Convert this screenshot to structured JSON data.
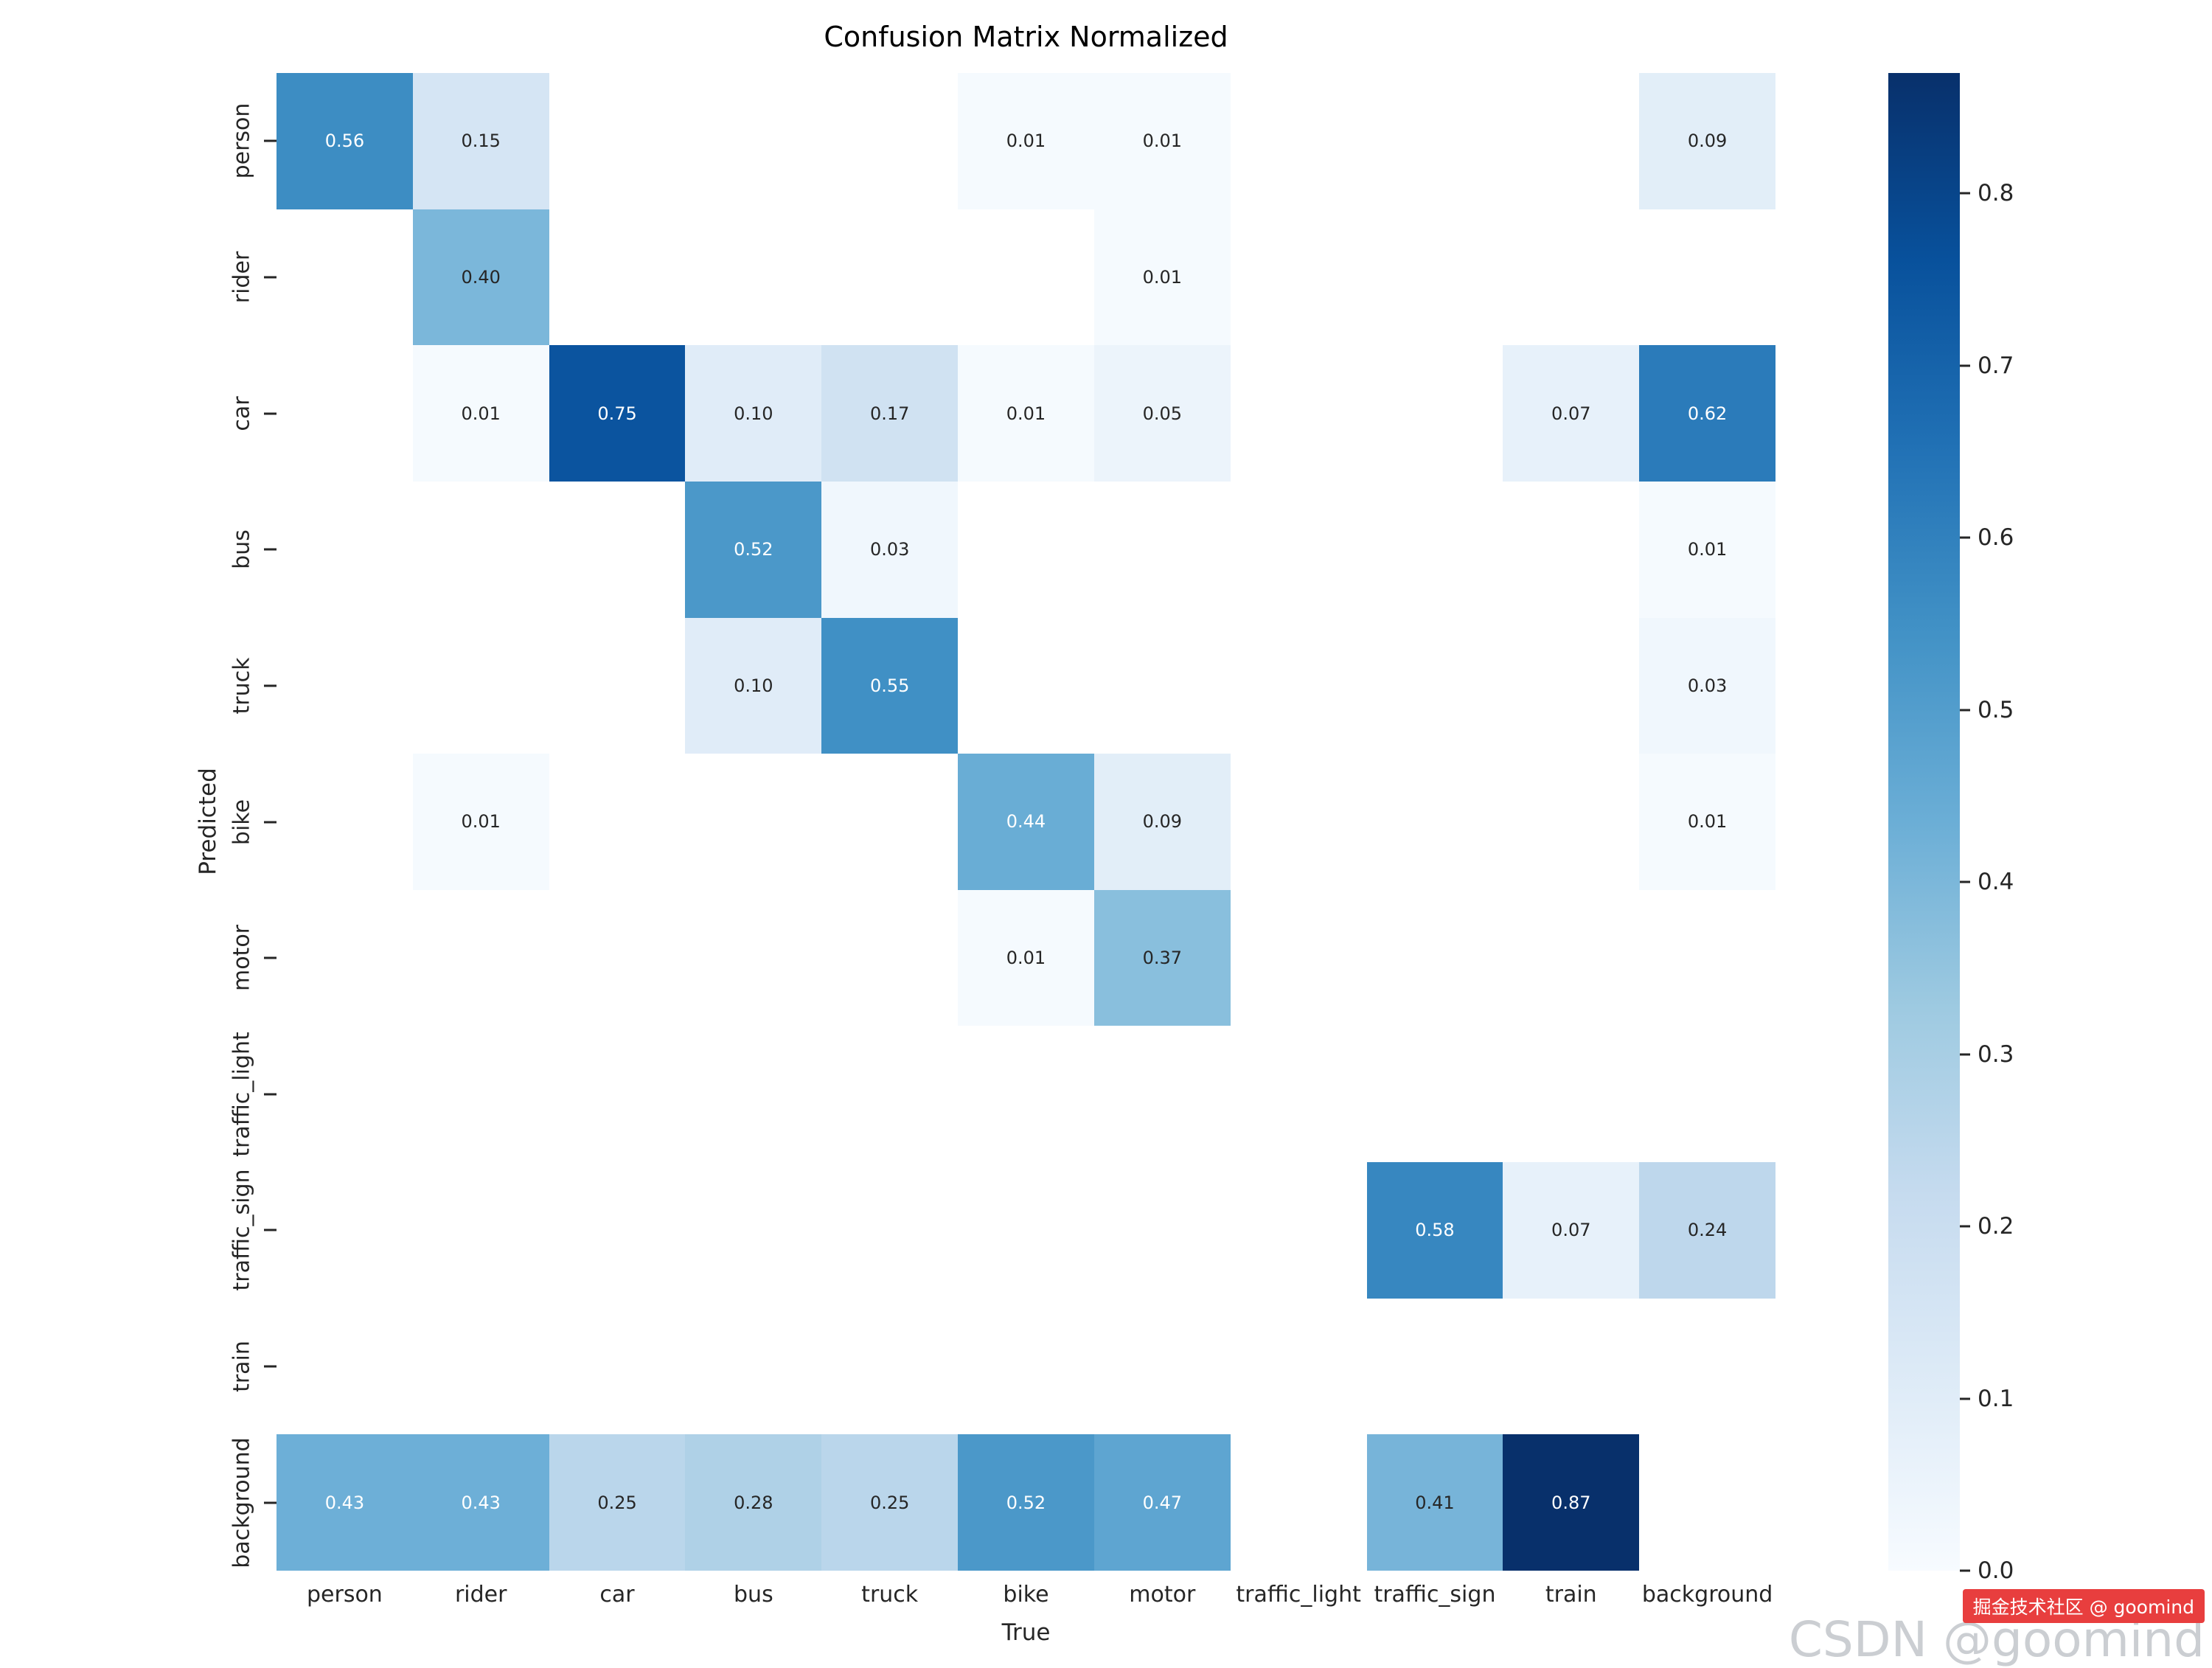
{
  "title": "Confusion Matrix Normalized",
  "watermark": {
    "badge": "掘金技术社区 @ goomind",
    "text": "CSDN @goomind"
  },
  "colors": {
    "colormap_dark": "#08306b",
    "colormap_light": "#f7fbff",
    "annotation_dark_text": "#262626",
    "annotation_light_text": "#ffffff",
    "watermark_red": "#e83e3e",
    "watermark_gray": "#a8aeb4"
  },
  "chart_data": {
    "type": "heatmap",
    "title": "Confusion Matrix Normalized",
    "xlabel": "True",
    "ylabel": "Predicted",
    "colormap": "Blues",
    "grid": false,
    "legend_position": "colorbar-right",
    "categories": [
      "person",
      "rider",
      "car",
      "bus",
      "truck",
      "bike",
      "motor",
      "traffic_light",
      "traffic_sign",
      "train",
      "background"
    ],
    "vmin": 0.0,
    "vmax": 0.87,
    "colorbar_ticks": [
      0.0,
      0.1,
      0.2,
      0.3,
      0.4,
      0.5,
      0.6,
      0.7,
      0.8
    ],
    "matrix": [
      [
        0.56,
        0.15,
        null,
        null,
        null,
        0.01,
        0.01,
        null,
        null,
        null,
        0.09
      ],
      [
        null,
        0.4,
        null,
        null,
        null,
        null,
        0.01,
        null,
        null,
        null,
        null
      ],
      [
        null,
        0.01,
        0.75,
        0.1,
        0.17,
        0.01,
        0.05,
        null,
        null,
        0.07,
        0.62
      ],
      [
        null,
        null,
        null,
        0.52,
        0.03,
        null,
        null,
        null,
        null,
        null,
        0.01
      ],
      [
        null,
        null,
        null,
        0.1,
        0.55,
        null,
        null,
        null,
        null,
        null,
        0.03
      ],
      [
        null,
        0.01,
        null,
        null,
        null,
        0.44,
        0.09,
        null,
        null,
        null,
        0.01
      ],
      [
        null,
        null,
        null,
        null,
        null,
        0.01,
        0.37,
        null,
        null,
        null,
        null
      ],
      [
        null,
        null,
        null,
        null,
        null,
        null,
        null,
        null,
        null,
        null,
        null
      ],
      [
        null,
        null,
        null,
        null,
        null,
        null,
        null,
        null,
        0.58,
        0.07,
        0.24
      ],
      [
        null,
        null,
        null,
        null,
        null,
        null,
        null,
        null,
        null,
        null,
        null
      ],
      [
        0.43,
        0.43,
        0.25,
        0.28,
        0.25,
        0.52,
        0.47,
        null,
        0.41,
        0.87,
        null
      ]
    ]
  }
}
